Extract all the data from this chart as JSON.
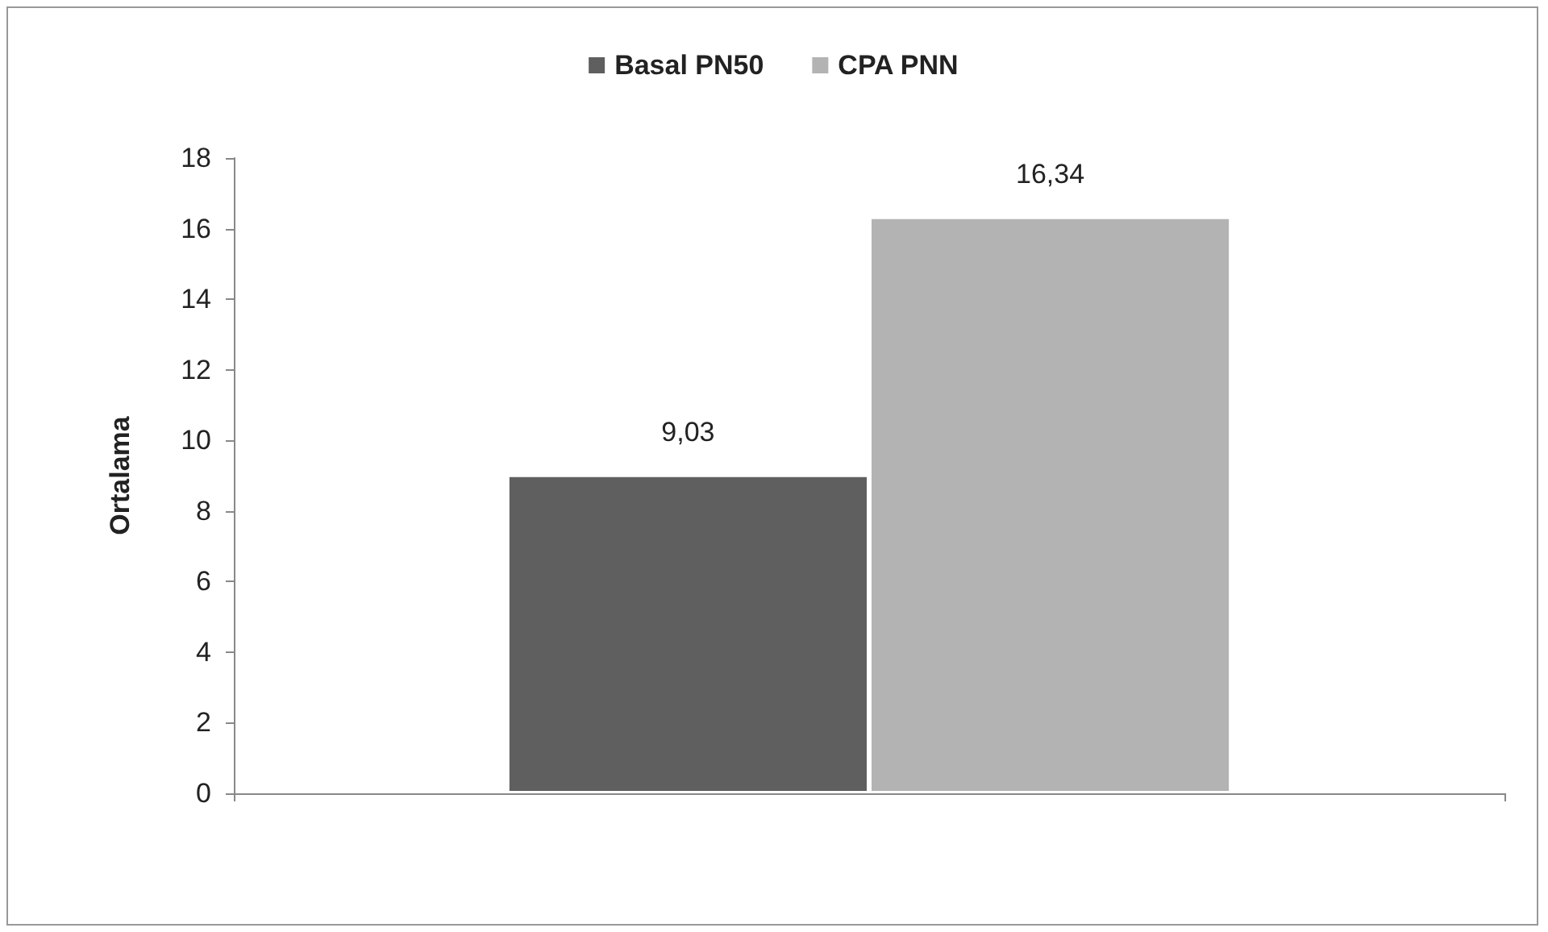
{
  "chart_data": {
    "type": "bar",
    "ylabel": "Ortalama",
    "categories": [
      null
    ],
    "series": [
      {
        "name": "Basal PN50",
        "color": "#5f5f5f",
        "values": [
          9.03
        ],
        "value_labels": [
          "9,03"
        ]
      },
      {
        "name": "CPA PNN",
        "color": "#b3b3b3",
        "values": [
          16.34
        ],
        "value_labels": [
          "16,34"
        ]
      }
    ],
    "ylim": [
      0,
      18
    ],
    "yticks": [
      0,
      2,
      4,
      6,
      8,
      10,
      12,
      14,
      16,
      18
    ],
    "grid": false,
    "legend": "top"
  }
}
